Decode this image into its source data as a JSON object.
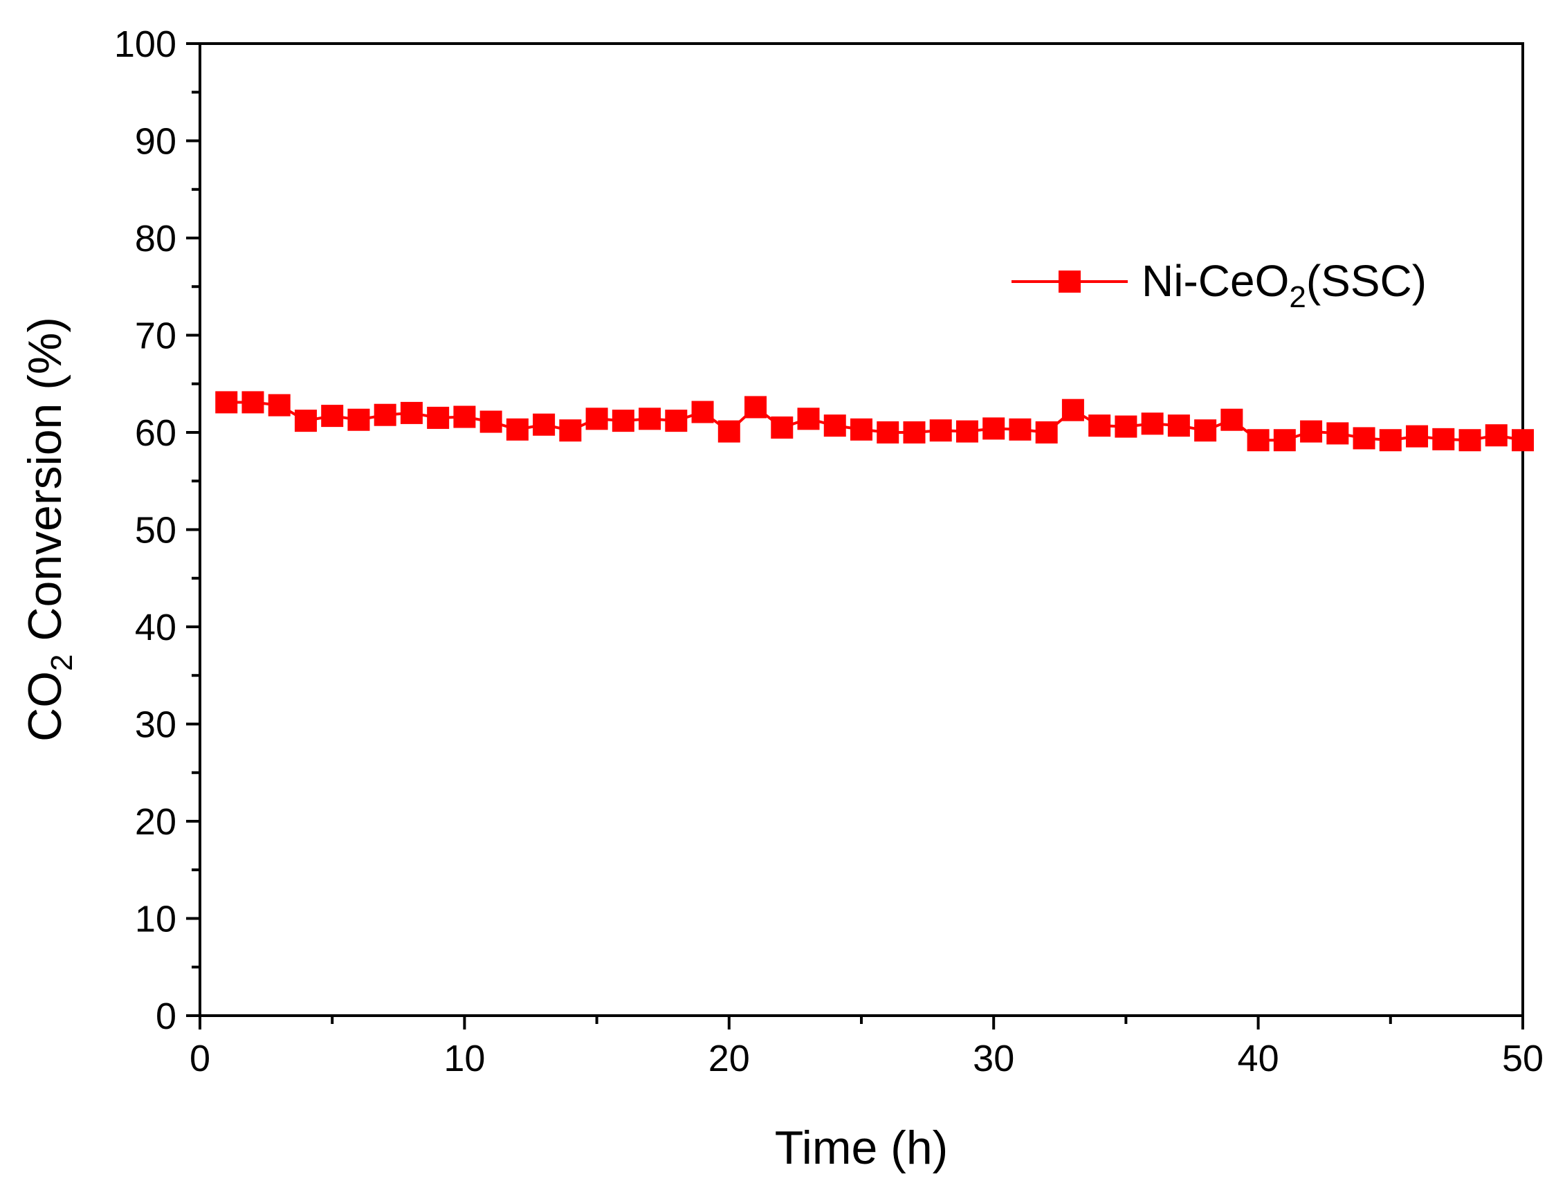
{
  "chart_data": {
    "type": "line",
    "title": "",
    "xlabel": "Time (h)",
    "ylabel": {
      "main": "CO",
      "subscript": "2",
      "rest": " Conversion (%)"
    },
    "xlim": [
      0,
      50
    ],
    "ylim": [
      0,
      100
    ],
    "x_ticks": [
      "0",
      "10",
      "20",
      "30",
      "40",
      "50"
    ],
    "y_ticks": [
      "0",
      "10",
      "20",
      "30",
      "40",
      "50",
      "60",
      "70",
      "80",
      "90",
      "100"
    ],
    "grid": false,
    "legend_position": "top-right",
    "series": [
      {
        "name": "Ni-CeO2(SSC)",
        "legend_parts": {
          "main": "Ni-CeO",
          "subscript": "2",
          "rest": "(SSC)"
        },
        "color": "#ff0000",
        "marker": "square",
        "x": [
          1,
          2,
          3,
          4,
          5,
          6,
          7,
          8,
          9,
          10,
          11,
          12,
          13,
          14,
          15,
          16,
          17,
          18,
          19,
          20,
          21,
          22,
          23,
          24,
          25,
          26,
          27,
          28,
          29,
          30,
          31,
          32,
          33,
          34,
          35,
          36,
          37,
          38,
          39,
          40,
          41,
          42,
          43,
          44,
          45,
          46,
          47,
          48,
          49,
          50
        ],
        "values": [
          63.1,
          63.1,
          62.8,
          61.2,
          61.7,
          61.3,
          61.8,
          62.0,
          61.5,
          61.6,
          61.1,
          60.3,
          60.8,
          60.2,
          61.4,
          61.2,
          61.4,
          61.2,
          62.1,
          60.1,
          62.6,
          60.5,
          61.4,
          60.7,
          60.3,
          60.0,
          60.0,
          60.2,
          60.1,
          60.4,
          60.3,
          60.0,
          62.3,
          60.7,
          60.6,
          60.9,
          60.7,
          60.2,
          61.3,
          59.2,
          59.2,
          60.1,
          59.9,
          59.4,
          59.2,
          59.6,
          59.3,
          59.2,
          59.7,
          59.2
        ]
      }
    ]
  }
}
